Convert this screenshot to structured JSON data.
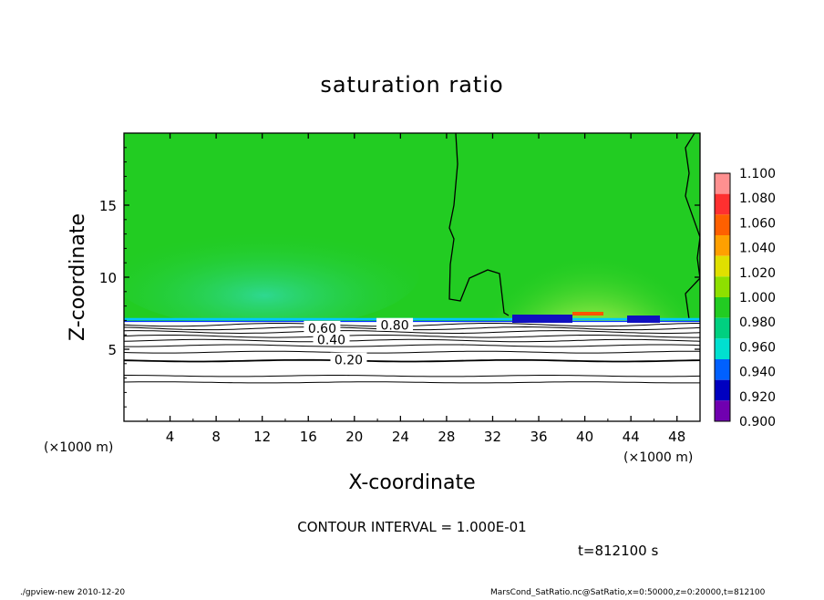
{
  "chart_data": {
    "type": "heatmap",
    "title": "saturation ratio",
    "xlabel": "X-coordinate",
    "ylabel": "Z-coordinate",
    "x_unit": "(×1000 m)",
    "y_unit": "(×1000 m)",
    "xlim": [
      0,
      50
    ],
    "ylim": [
      0,
      20
    ],
    "x_ticks": [
      "4",
      "8",
      "12",
      "16",
      "20",
      "24",
      "28",
      "32",
      "36",
      "40",
      "44",
      "48"
    ],
    "y_ticks": [
      "5",
      "10",
      "15"
    ],
    "colorbar": {
      "levels": [
        "1.100",
        "1.080",
        "1.060",
        "1.040",
        "1.020",
        "1.000",
        "0.980",
        "0.960",
        "0.940",
        "0.920",
        "0.900"
      ],
      "colors": [
        "#ff9090",
        "#ff3030",
        "#ff6000",
        "#ffa000",
        "#e0e000",
        "#8ee000",
        "#22cc22",
        "#00d080",
        "#00e0d0",
        "#0060ff",
        "#0000c0",
        "#7000b0"
      ]
    },
    "contour_labels": [
      {
        "text": "0.20",
        "x": 19.5,
        "y": 4.2
      },
      {
        "text": "0.40",
        "x": 18.0,
        "y": 5.6
      },
      {
        "text": "0.60",
        "x": 17.2,
        "y": 6.4
      },
      {
        "text": "0.80",
        "x": 23.5,
        "y": 6.6
      }
    ],
    "colors": {
      "field": "#22cc22",
      "field_light": "#33d66a",
      "field_warm": "#66e03a",
      "dry_region": "#ffffff"
    }
  },
  "footer": {
    "contour_interval": "CONTOUR INTERVAL = 1.000E-01",
    "time": "t=812100 s",
    "left_note": "./gpview-new 2010-12-20",
    "right_note": "MarsCond_SatRatio.nc@SatRatio,x=0:50000,z=0:20000,t=812100"
  }
}
